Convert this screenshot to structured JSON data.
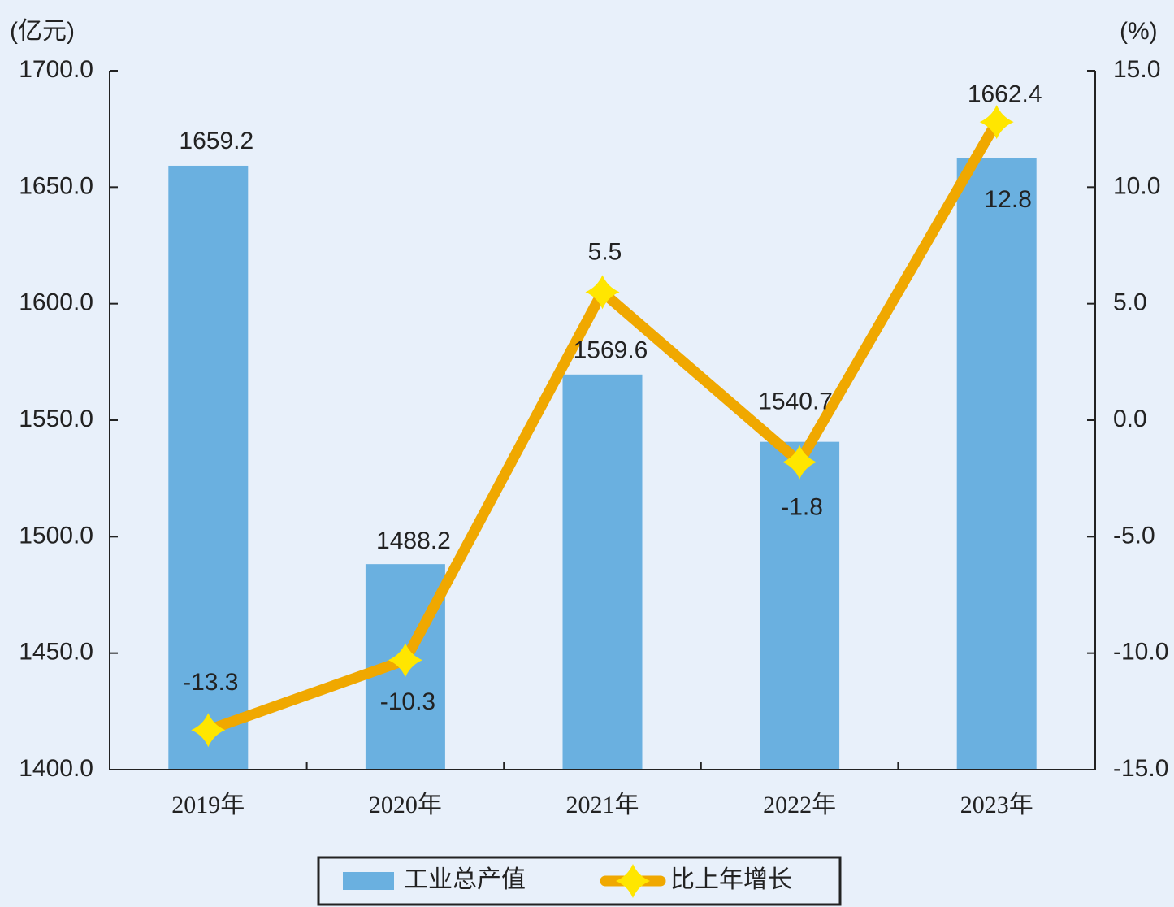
{
  "chart_data": {
    "type": "bar-line",
    "y_unit": "(亿元)",
    "y2_unit": "(%)",
    "categories": [
      "2019年",
      "2020年",
      "2021年",
      "2022年",
      "2023年"
    ],
    "series": [
      {
        "name": "工业总产值",
        "type": "bar",
        "color": "#6ab0e0",
        "values": [
          1659.2,
          1488.2,
          1569.6,
          1540.7,
          1662.4
        ]
      },
      {
        "name": "比上年增长",
        "type": "line",
        "axis": "y2",
        "color": "#f0a800",
        "marker_color": "#ffe600",
        "values": [
          -13.3,
          -10.3,
          5.5,
          -1.8,
          12.8
        ]
      }
    ],
    "ylim": [
      1400,
      1700
    ],
    "yticks": [
      {
        "value": 1400,
        "label": "1400.0"
      },
      {
        "value": 1450,
        "label": "1450.0"
      },
      {
        "value": 1500,
        "label": "1500.0"
      },
      {
        "value": 1550,
        "label": "1550.0"
      },
      {
        "value": 1600,
        "label": "1600.0"
      },
      {
        "value": 1650,
        "label": "1650.0"
      },
      {
        "value": 1700,
        "label": "1700.0"
      }
    ],
    "y2lim": [
      -15,
      15
    ],
    "y2ticks": [
      {
        "value": -15,
        "label": "-15.0"
      },
      {
        "value": -10,
        "label": "-10.0"
      },
      {
        "value": -5,
        "label": "-5.0"
      },
      {
        "value": 0,
        "label": "0.0"
      },
      {
        "value": 5,
        "label": "5.0"
      },
      {
        "value": 10,
        "label": "10.0"
      },
      {
        "value": 15,
        "label": "15.0"
      }
    ],
    "legend": "bottom"
  }
}
